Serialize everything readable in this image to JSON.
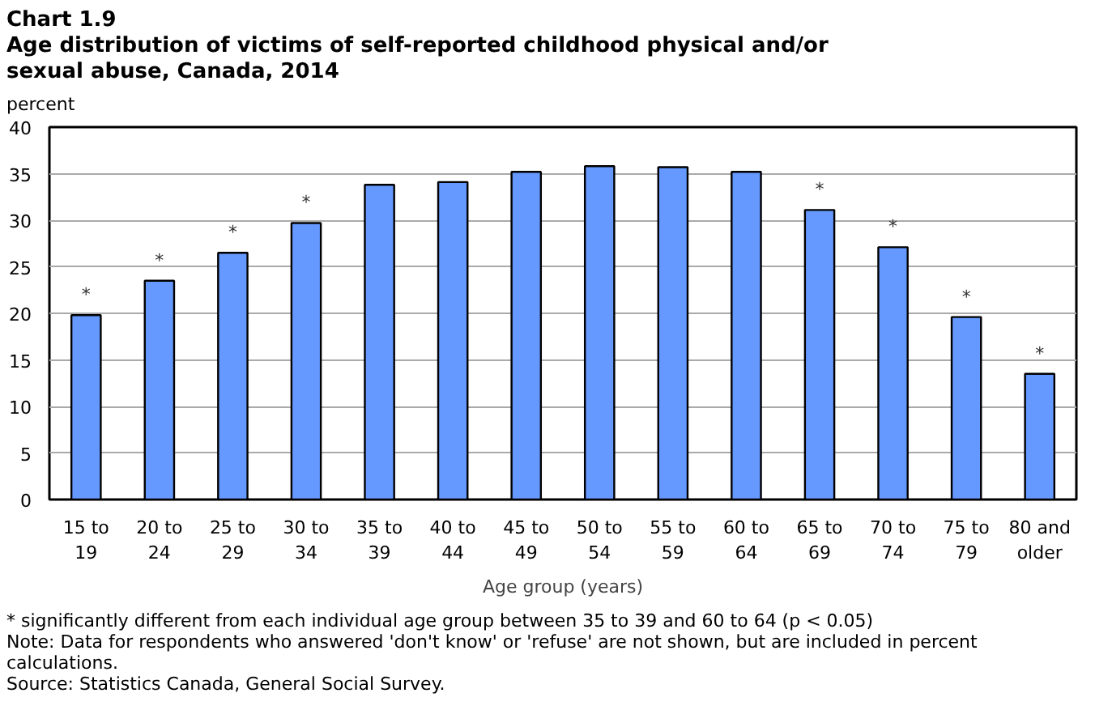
{
  "chart_data": {
    "type": "bar",
    "title": "Chart 1.9",
    "subtitle": "Age distribution  of victims of self-reported childhood physical and/or sexual abuse, Canada, 2014",
    "xlabel": "Age group (years)",
    "ylabel": "percent",
    "categories": [
      "15 to 19",
      "20 to 24",
      "25 to 29",
      "30 to 34",
      "35 to 39",
      "40 to 44",
      "45 to 49",
      "50 to 54",
      "55 to 59",
      "60 to 64",
      "65 to 69",
      "70 to 74",
      "75 to 79",
      "80 and older"
    ],
    "values": [
      19.8,
      23.5,
      26.5,
      29.7,
      33.8,
      34.1,
      35.2,
      35.8,
      35.7,
      35.2,
      31.1,
      27.1,
      19.6,
      13.5
    ],
    "color": "#6699ff",
    "ylim": [
      0,
      40
    ],
    "yticks": [
      0,
      5,
      10,
      15,
      20,
      25,
      30,
      35,
      40
    ],
    "grid": "y",
    "annotations": [
      {
        "text": "*",
        "x": "15 to 19",
        "y": 19.8
      },
      {
        "text": "*",
        "x": "20 to 24",
        "y": 23.5
      },
      {
        "text": "*",
        "x": "25 to 29",
        "y": 26.5
      },
      {
        "text": "*",
        "x": "30 to 34",
        "y": 29.7
      },
      {
        "text": "*",
        "x": "65 to 69",
        "y": 31.1
      },
      {
        "text": "*",
        "x": "70 to 74",
        "y": 27.1
      },
      {
        "text": "*",
        "x": "75 to 79",
        "y": 19.6
      },
      {
        "text": "*",
        "x": "80 and older",
        "y": 13.5
      },
      "* significantly different from each individual age group between 35 to 39 and 60 to 64 (p < 0.05)",
      "Note: Data for respondents who answered 'don't know' or 'refuse' are not shown, but are included in percent calculations.",
      "Source: Statistics Canada, General Social Survey."
    ]
  }
}
